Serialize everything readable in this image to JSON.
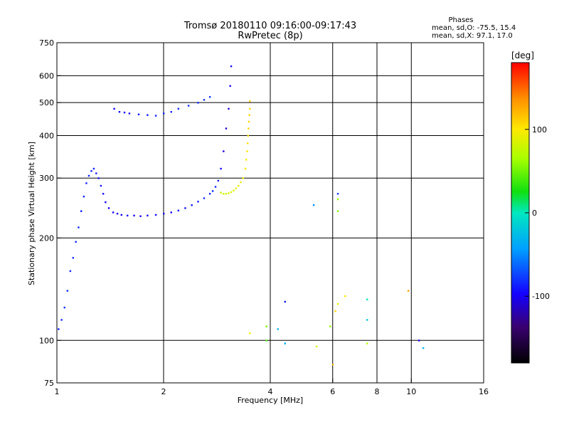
{
  "chart_data": {
    "type": "scatter",
    "title": "Tromsø 20180110 09:16:00-09:17:43",
    "subtitle": "RwPretec (8p)",
    "stats": {
      "heading": "Phases",
      "line_o": "mean, sd,O: -75.5, 15.4",
      "line_x": "mean, sd,X:  97.1, 17.0"
    },
    "xlabel": "Frequency [MHz]",
    "ylabel": "Stationary phase Virtual Height [km]",
    "xscale": "log",
    "yscale": "log",
    "xlim": [
      1,
      16
    ],
    "ylim": [
      75,
      750
    ],
    "xticks": [
      {
        "value": 1,
        "label": "1"
      },
      {
        "value": 2,
        "label": "2"
      },
      {
        "value": 4,
        "label": "4"
      },
      {
        "value": 6,
        "label": "6"
      },
      {
        "value": 8,
        "label": "8"
      },
      {
        "value": 10,
        "label": "10"
      },
      {
        "value": 16,
        "label": "16"
      }
    ],
    "xgrid": [
      2,
      4,
      6,
      8,
      10
    ],
    "yticks": [
      {
        "value": 75,
        "label": "75"
      },
      {
        "value": 100,
        "label": "100"
      },
      {
        "value": 200,
        "label": "200"
      },
      {
        "value": 300,
        "label": "300"
      },
      {
        "value": 400,
        "label": "400"
      },
      {
        "value": 500,
        "label": "500"
      },
      {
        "value": 600,
        "label": "600"
      },
      {
        "value": 750,
        "label": "750"
      }
    ],
    "ygrid": [
      100,
      200,
      300,
      400,
      500,
      600
    ],
    "grid": true,
    "colorbar": {
      "label": "[deg]",
      "range": [
        -180,
        180
      ],
      "ticks": [
        {
          "value": 100,
          "label": "100"
        },
        {
          "value": 0,
          "label": "0"
        },
        {
          "value": -100,
          "label": "-100"
        }
      ]
    },
    "series": [
      {
        "x": [
          1.01,
          1.03,
          1.05,
          1.07,
          1.09,
          1.11,
          1.13,
          1.15,
          1.17,
          1.19,
          1.21,
          1.23,
          1.25,
          1.27,
          1.29,
          1.31,
          1.33,
          1.35,
          1.37,
          1.4,
          1.44,
          1.48,
          1.52,
          1.58,
          1.65,
          1.72,
          1.8,
          1.9,
          2.0,
          2.1,
          2.2,
          2.3,
          2.4,
          2.5,
          2.6,
          2.7,
          2.75,
          2.8,
          2.85,
          2.9,
          2.95,
          3.0,
          3.05,
          3.08,
          3.1
        ],
        "y": [
          108,
          115,
          125,
          140,
          160,
          175,
          195,
          215,
          240,
          265,
          290,
          305,
          315,
          320,
          310,
          300,
          285,
          270,
          255,
          245,
          238,
          236,
          234,
          233,
          233,
          232,
          233,
          234,
          236,
          238,
          241,
          245,
          250,
          256,
          262,
          270,
          275,
          283,
          295,
          320,
          360,
          420,
          480,
          560,
          640
        ],
        "phase": [
          -85,
          -82,
          -80,
          -82,
          -84,
          -83,
          -85,
          -86,
          -88,
          -86,
          -85,
          -87,
          -84,
          -86,
          -88,
          -90,
          -92,
          -93,
          -95,
          -98,
          -99,
          -100,
          -100,
          -99,
          -98,
          -98,
          -97,
          -96,
          -95,
          -94,
          -92,
          -90,
          -88,
          -86,
          -84,
          -82,
          -82,
          -84,
          -88,
          -95,
          -105,
          -110,
          -108,
          -100,
          -92
        ]
      },
      {
        "x": [
          1.45,
          1.5,
          1.55,
          1.6,
          1.7,
          1.8,
          1.9,
          2.0,
          2.1,
          2.2,
          2.35,
          2.5,
          2.6,
          2.7
        ],
        "y": [
          480,
          470,
          468,
          465,
          462,
          460,
          458,
          465,
          470,
          480,
          490,
          500,
          510,
          520
        ],
        "phase": [
          -96,
          -94,
          -92,
          -92,
          -90,
          -88,
          -86,
          -85,
          -84,
          -84,
          -83,
          -82,
          -82,
          -80
        ]
      },
      {
        "x": [
          2.9,
          2.95,
          3.0,
          3.05,
          3.1,
          3.15,
          3.2,
          3.25,
          3.3,
          3.35,
          3.4,
          3.42,
          3.44,
          3.45,
          3.46,
          3.47,
          3.48,
          3.49,
          3.5,
          3.5
        ],
        "y": [
          272,
          270,
          270,
          271,
          273,
          276,
          280,
          285,
          292,
          300,
          320,
          340,
          360,
          380,
          400,
          420,
          440,
          460,
          480,
          505
        ],
        "phase": [
          78,
          80,
          82,
          84,
          86,
          88,
          90,
          92,
          94,
          96,
          98,
          100,
          102,
          104,
          106,
          108,
          108,
          110,
          110,
          112
        ]
      },
      {
        "x": [
          3.9,
          4.4,
          4.2,
          5.4,
          5.9,
          6.0,
          6.1,
          6.2,
          6.5,
          7.5,
          7.5,
          7.5,
          10.5,
          10.8,
          3.5,
          3.9,
          4.4,
          5.3,
          6.2,
          6.2,
          6.2,
          9.8
        ],
        "y": [
          100,
          98,
          108,
          96,
          110,
          85,
          122,
          128,
          135,
          98,
          115,
          132,
          100,
          95,
          105,
          110,
          130,
          250,
          270,
          260,
          240,
          140
        ],
        "phase": [
          40,
          -40,
          -30,
          80,
          60,
          120,
          110,
          90,
          100,
          70,
          -20,
          0,
          -100,
          -30,
          95,
          50,
          -90,
          -50,
          -80,
          60,
          55,
          130
        ]
      }
    ]
  }
}
